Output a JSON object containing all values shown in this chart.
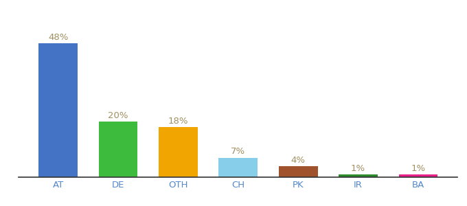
{
  "categories": [
    "AT",
    "DE",
    "OTH",
    "CH",
    "PK",
    "IR",
    "BA"
  ],
  "values": [
    48,
    20,
    18,
    7,
    4,
    1,
    1
  ],
  "labels": [
    "48%",
    "20%",
    "18%",
    "7%",
    "4%",
    "1%",
    "1%"
  ],
  "bar_colors": [
    "#4472c4",
    "#3dbb3d",
    "#f0a500",
    "#87ceeb",
    "#a0522d",
    "#2d8a2d",
    "#e8208a"
  ],
  "ylim": [
    0,
    56
  ],
  "background_color": "#ffffff",
  "label_color": "#a09060",
  "label_fontsize": 9.5,
  "tick_fontsize": 9.5,
  "bar_width": 0.65
}
